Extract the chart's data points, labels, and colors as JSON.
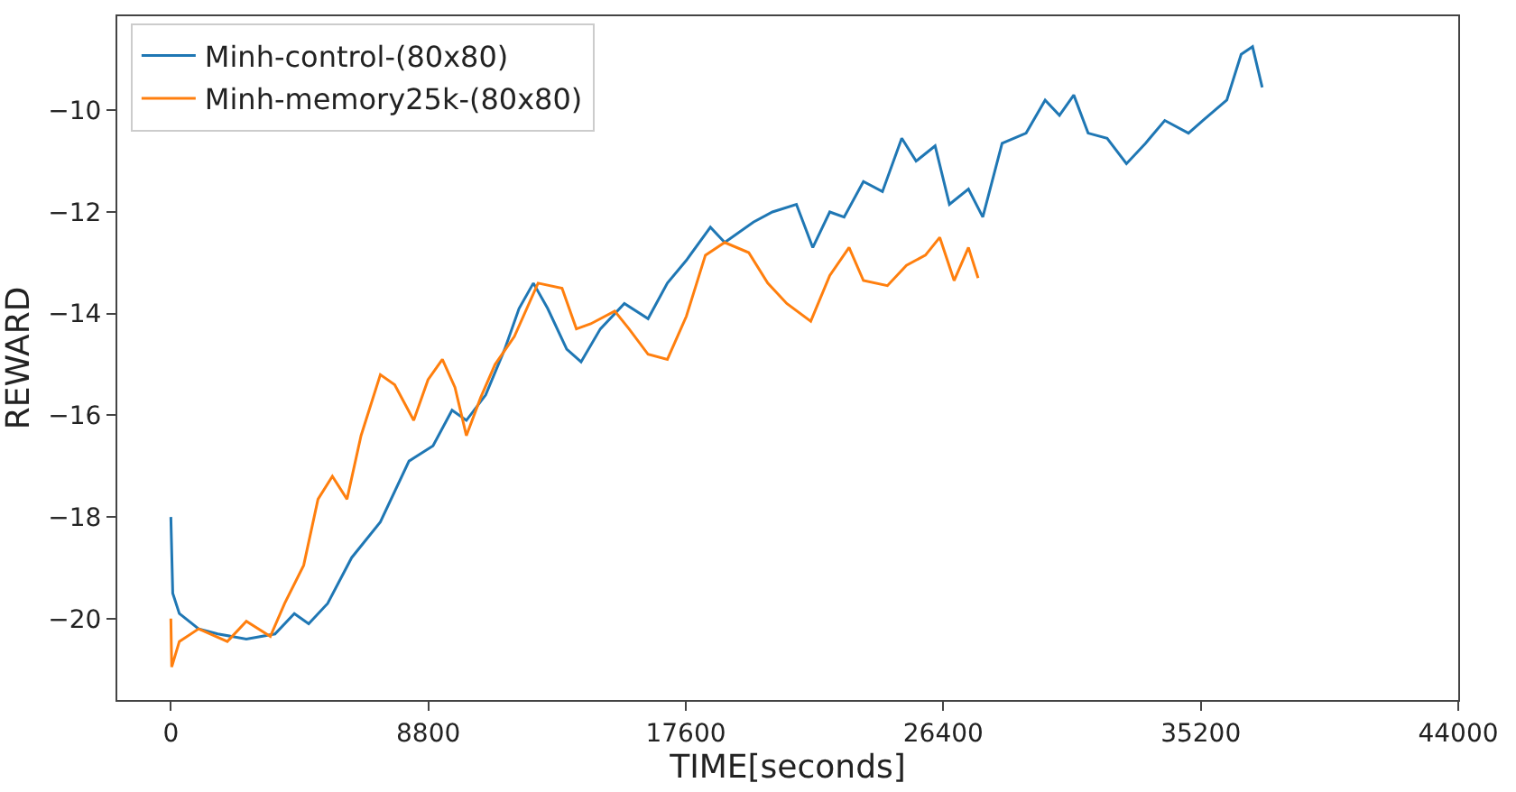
{
  "chart_data": {
    "type": "line",
    "xlabel": "TIME[seconds]",
    "ylabel": "REWARD",
    "xlim": [
      -1830,
      44000
    ],
    "xticks": [
      0,
      8800,
      17600,
      26400,
      35200,
      44000
    ],
    "ylim": [
      -21.6,
      -8.15
    ],
    "yticks": [
      {
        "value": -20,
        "label": "−20"
      },
      {
        "value": -18,
        "label": "−18"
      },
      {
        "value": -16,
        "label": "−16"
      },
      {
        "value": -14,
        "label": "−14"
      },
      {
        "value": -12,
        "label": "−12"
      },
      {
        "value": -10,
        "label": "−10"
      }
    ],
    "legend": "top left",
    "marker": "none",
    "line_style": "solid",
    "series": [
      {
        "name": "Minh-control-(80x80)",
        "color": "#1f77b4",
        "x": [
          0,
          65,
          290,
          950,
          1600,
          2580,
          3560,
          4220,
          4710,
          5360,
          6180,
          7160,
          8140,
          8960,
          9610,
          10100,
          10760,
          11410,
          11900,
          12390,
          12880,
          13530,
          14020,
          14680,
          15500,
          16310,
          16970,
          17620,
          18440,
          18930,
          19910,
          20560,
          21380,
          21940,
          22520,
          23010,
          23670,
          24320,
          24980,
          25470,
          26120,
          26610,
          27260,
          27750,
          28410,
          29230,
          29880,
          30370,
          30860,
          31350,
          32000,
          32660,
          33310,
          33970,
          34780,
          35270,
          36090,
          36580,
          36970,
          37300
        ],
        "values": [
          -18.0,
          -19.5,
          -19.9,
          -20.2,
          -20.3,
          -20.4,
          -20.3,
          -19.9,
          -20.1,
          -19.7,
          -18.8,
          -18.1,
          -16.9,
          -16.6,
          -15.9,
          -16.1,
          -15.6,
          -14.7,
          -13.9,
          -13.4,
          -13.9,
          -14.7,
          -14.95,
          -14.3,
          -13.8,
          -14.1,
          -13.4,
          -12.95,
          -12.3,
          -12.6,
          -12.2,
          -12.0,
          -11.85,
          -12.7,
          -12.0,
          -12.1,
          -11.4,
          -11.6,
          -10.55,
          -11.0,
          -10.7,
          -11.85,
          -11.55,
          -12.1,
          -10.65,
          -10.45,
          -9.8,
          -10.1,
          -9.7,
          -10.45,
          -10.55,
          -11.05,
          -10.65,
          -10.2,
          -10.45,
          -10.2,
          -9.8,
          -8.9,
          -8.75,
          -9.55
        ]
      },
      {
        "name": "Minh-memory25k-(80x80)",
        "color": "#ff7f0e",
        "x": [
          0,
          30,
          290,
          950,
          1930,
          2580,
          3400,
          3890,
          4540,
          5030,
          5520,
          6020,
          6500,
          7160,
          7650,
          8300,
          8790,
          9280,
          9710,
          10100,
          10590,
          11080,
          11740,
          12550,
          13370,
          13860,
          14350,
          15170,
          15660,
          16310,
          16970,
          17620,
          18270,
          18930,
          19750,
          20400,
          21050,
          21870,
          22520,
          23180,
          23670,
          24490,
          25140,
          25790,
          26280,
          26770,
          27260,
          27590
        ],
        "values": [
          -20.0,
          -20.95,
          -20.45,
          -20.2,
          -20.45,
          -20.05,
          -20.35,
          -19.7,
          -18.95,
          -17.65,
          -17.2,
          -17.65,
          -16.4,
          -15.2,
          -15.4,
          -16.1,
          -15.3,
          -14.9,
          -15.45,
          -16.4,
          -15.65,
          -15.0,
          -14.45,
          -13.4,
          -13.5,
          -14.3,
          -14.2,
          -13.95,
          -14.3,
          -14.8,
          -14.9,
          -14.05,
          -12.85,
          -12.6,
          -12.8,
          -13.4,
          -13.8,
          -14.15,
          -13.25,
          -12.7,
          -13.35,
          -13.45,
          -13.05,
          -12.85,
          -12.5,
          -13.35,
          -12.7,
          -13.3
        ]
      }
    ]
  }
}
